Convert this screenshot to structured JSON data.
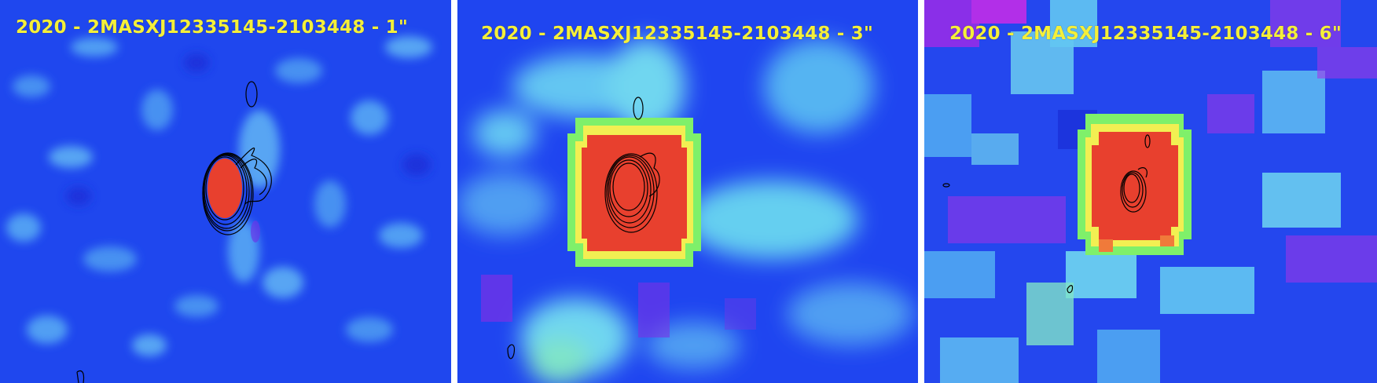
{
  "panels": [
    {
      "title": "2020 - 2MASXJ12335145-2103448 - 1\"",
      "pixelization": "fine",
      "colormap": "blue-cyan-green-yellow-red",
      "contour_color": "#000000"
    },
    {
      "title": "2020 - 2MASXJ12335145-2103448 - 3\"",
      "pixelization": "medium",
      "colormap": "blue-cyan-green-yellow-red",
      "contour_color": "#000000"
    },
    {
      "title": "2020 - 2MASXJ12335145-2103448 - 6\"",
      "pixelization": "coarse",
      "colormap": "blue-cyan-green-yellow-red",
      "contour_color": "#000000"
    }
  ],
  "colors": {
    "background_blue": "#1f3df0",
    "cyan": "#6fd8f0",
    "green": "#7ff06a",
    "yellow": "#f2ef52",
    "red": "#e8402e",
    "violet": "#9b2fe6",
    "title": "#f4ef3a"
  }
}
